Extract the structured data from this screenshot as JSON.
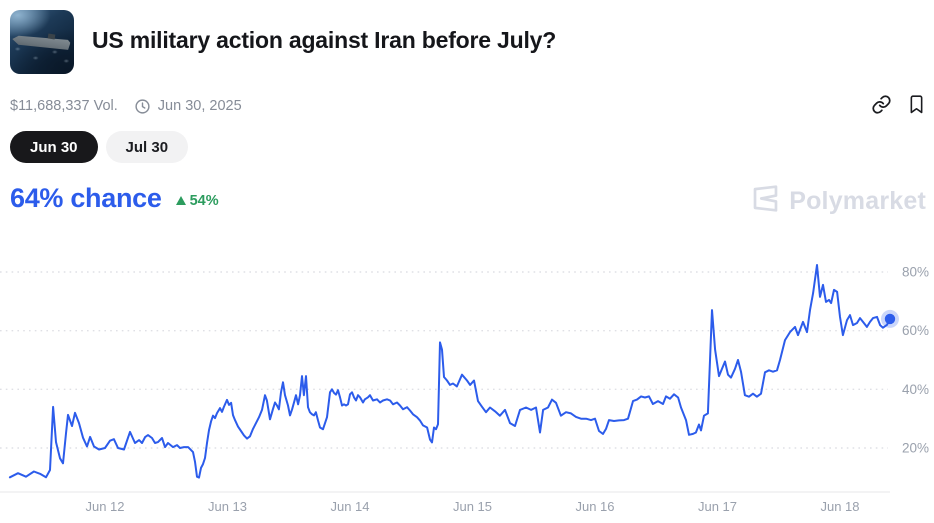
{
  "header": {
    "title": "US military action against Iran before July?",
    "volume": "$11,688,337 Vol.",
    "end_date": "Jun 30, 2025",
    "thumbnail_alt": "aircraft-carrier-photo",
    "action_icons": [
      "link-icon",
      "bookmark-icon"
    ]
  },
  "tabs": [
    {
      "label": "Jun 30",
      "active": true
    },
    {
      "label": "Jul 30",
      "active": false
    }
  ],
  "summary": {
    "chance_text": "64% chance",
    "change_direction": "up",
    "change_text": "54%"
  },
  "watermark": {
    "text": "Polymarket"
  },
  "colors": {
    "line_blue": "#2c5ceb",
    "green": "#2c9c5e",
    "grid": "#dfe0e5",
    "axis_line": "#e7e7ea",
    "axis_text": "#9aa1ad",
    "tab_active_bg": "#18181b",
    "muted_text": "#868c97",
    "title_text": "#15161a",
    "watermark_gray": "#d8dbe4"
  },
  "chart_data": {
    "type": "line",
    "title": "Probability of Yes over time",
    "legend": "none",
    "grid": "dotted-horizontal",
    "x_axis": {
      "unit": "date (June 2025, fractional days)",
      "range": [
        11.2,
        18.45
      ],
      "ticks": [
        {
          "d": 12,
          "label": "Jun 12"
        },
        {
          "d": 13,
          "label": "Jun 13"
        },
        {
          "d": 14,
          "label": "Jun 14"
        },
        {
          "d": 15,
          "label": "Jun 15"
        },
        {
          "d": 16,
          "label": "Jun 16"
        },
        {
          "d": 17,
          "label": "Jun 17"
        },
        {
          "d": 18,
          "label": "Jun 18"
        }
      ]
    },
    "y_axis": {
      "unit": "percent chance",
      "range": [
        0,
        100
      ],
      "ticks": [
        {
          "v": 20,
          "label": "20%"
        },
        {
          "v": 40,
          "label": "40%"
        },
        {
          "v": 60,
          "label": "60%"
        },
        {
          "v": 80,
          "label": "80%"
        }
      ]
    },
    "end_dot": {
      "day": 18.408,
      "value": 64
    },
    "series": [
      {
        "name": "Jun 30 — Yes",
        "color": "#2c5ceb",
        "points": [
          [
            11.224,
            10
          ],
          [
            11.29,
            11.4
          ],
          [
            11.355,
            10.2
          ],
          [
            11.42,
            12
          ],
          [
            11.469,
            11.2
          ],
          [
            11.518,
            10
          ],
          [
            11.551,
            12.5
          ],
          [
            11.576,
            34
          ],
          [
            11.6,
            22
          ],
          [
            11.633,
            16.5
          ],
          [
            11.657,
            14.8
          ],
          [
            11.682,
            25
          ],
          [
            11.698,
            31.3
          ],
          [
            11.731,
            27.5
          ],
          [
            11.755,
            32
          ],
          [
            11.788,
            28.5
          ],
          [
            11.82,
            23.5
          ],
          [
            11.853,
            20.5
          ],
          [
            11.878,
            23.8
          ],
          [
            11.91,
            20.5
          ],
          [
            11.951,
            19.5
          ],
          [
            12,
            20
          ],
          [
            12.041,
            22.5
          ],
          [
            12.073,
            23
          ],
          [
            12.106,
            20
          ],
          [
            12.155,
            19.5
          ],
          [
            12.204,
            25.5
          ],
          [
            12.245,
            21.7
          ],
          [
            12.278,
            22.7
          ],
          [
            12.302,
            21.7
          ],
          [
            12.327,
            23.7
          ],
          [
            12.351,
            24.4
          ],
          [
            12.384,
            23.4
          ],
          [
            12.408,
            21.7
          ],
          [
            12.433,
            22
          ],
          [
            12.465,
            23.4
          ],
          [
            12.49,
            20.3
          ],
          [
            12.514,
            21.7
          ],
          [
            12.555,
            20.3
          ],
          [
            12.588,
            21
          ],
          [
            12.612,
            20
          ],
          [
            12.645,
            20.3
          ],
          [
            12.678,
            20.3
          ],
          [
            12.718,
            18.6
          ],
          [
            12.735,
            15.3
          ],
          [
            12.751,
            10.2
          ],
          [
            12.767,
            9.9
          ],
          [
            12.784,
            13.2
          ],
          [
            12.8,
            14.5
          ],
          [
            12.816,
            16.6
          ],
          [
            12.833,
            21.7
          ],
          [
            12.849,
            26.1
          ],
          [
            12.865,
            29
          ],
          [
            12.882,
            31
          ],
          [
            12.898,
            30.2
          ],
          [
            12.914,
            31.9
          ],
          [
            12.939,
            33.6
          ],
          [
            12.955,
            32.3
          ],
          [
            12.971,
            34
          ],
          [
            12.996,
            36.4
          ],
          [
            13.012,
            34.7
          ],
          [
            13.029,
            35.4
          ],
          [
            13.045,
            31.2
          ],
          [
            13.061,
            29.5
          ],
          [
            13.086,
            27.3
          ],
          [
            13.11,
            25.8
          ],
          [
            13.135,
            24.3
          ],
          [
            13.159,
            23.2
          ],
          [
            13.184,
            24
          ],
          [
            13.208,
            26.5
          ],
          [
            13.233,
            28.5
          ],
          [
            13.257,
            30.5
          ],
          [
            13.282,
            33
          ],
          [
            13.306,
            38
          ],
          [
            13.322,
            36.2
          ],
          [
            13.347,
            29.8
          ],
          [
            13.371,
            33.2
          ],
          [
            13.388,
            35.5
          ],
          [
            13.404,
            34.5
          ],
          [
            13.42,
            33.2
          ],
          [
            13.437,
            39
          ],
          [
            13.453,
            42.4
          ],
          [
            13.469,
            38
          ],
          [
            13.494,
            34.5
          ],
          [
            13.51,
            31.1
          ],
          [
            13.527,
            33.2
          ],
          [
            13.543,
            35.5
          ],
          [
            13.559,
            38
          ],
          [
            13.576,
            34.9
          ],
          [
            13.592,
            38
          ],
          [
            13.608,
            44.5
          ],
          [
            13.624,
            38
          ],
          [
            13.641,
            44.5
          ],
          [
            13.657,
            33.9
          ],
          [
            13.673,
            32.2
          ],
          [
            13.69,
            31.5
          ],
          [
            13.706,
            31.1
          ],
          [
            13.722,
            32.2
          ],
          [
            13.739,
            29.4
          ],
          [
            13.755,
            27
          ],
          [
            13.78,
            26.4
          ],
          [
            13.812,
            30.5
          ],
          [
            13.837,
            39
          ],
          [
            13.853,
            40
          ],
          [
            13.869,
            38.8
          ],
          [
            13.886,
            38.2
          ],
          [
            13.902,
            39.7
          ],
          [
            13.918,
            37.3
          ],
          [
            13.935,
            34.5
          ],
          [
            13.951,
            34.9
          ],
          [
            13.967,
            34.5
          ],
          [
            13.984,
            34.9
          ],
          [
            14,
            38.3
          ],
          [
            14.016,
            39
          ],
          [
            14.033,
            37.3
          ],
          [
            14.049,
            36.2
          ],
          [
            14.065,
            38
          ],
          [
            14.082,
            37.3
          ],
          [
            14.106,
            35.5
          ],
          [
            14.122,
            36.6
          ],
          [
            14.147,
            37.3
          ],
          [
            14.163,
            38
          ],
          [
            14.188,
            36.2
          ],
          [
            14.22,
            36.6
          ],
          [
            14.245,
            35.5
          ],
          [
            14.269,
            36.2
          ],
          [
            14.302,
            36.6
          ],
          [
            14.327,
            36.2
          ],
          [
            14.351,
            34.9
          ],
          [
            14.384,
            35.5
          ],
          [
            14.408,
            34.5
          ],
          [
            14.433,
            33.2
          ],
          [
            14.465,
            33.9
          ],
          [
            14.49,
            32.8
          ],
          [
            14.514,
            31.5
          ],
          [
            14.547,
            30.5
          ],
          [
            14.571,
            29.4
          ],
          [
            14.596,
            27.7
          ],
          [
            14.629,
            27
          ],
          [
            14.653,
            22.9
          ],
          [
            14.669,
            21.9
          ],
          [
            14.686,
            27
          ],
          [
            14.702,
            26.4
          ],
          [
            14.718,
            28.1
          ],
          [
            14.735,
            56
          ],
          [
            14.751,
            53.5
          ],
          [
            14.767,
            44.2
          ],
          [
            14.792,
            43
          ],
          [
            14.816,
            41.5
          ],
          [
            14.841,
            42
          ],
          [
            14.873,
            41
          ],
          [
            14.914,
            45
          ],
          [
            14.955,
            43
          ],
          [
            14.98,
            41.5
          ],
          [
            15.012,
            43
          ],
          [
            15.045,
            36
          ],
          [
            15.078,
            34
          ],
          [
            15.11,
            32.2
          ],
          [
            15.143,
            33.8
          ],
          [
            15.184,
            32.5
          ],
          [
            15.224,
            31
          ],
          [
            15.265,
            33
          ],
          [
            15.306,
            28.5
          ],
          [
            15.347,
            27.5
          ],
          [
            15.388,
            33
          ],
          [
            15.437,
            33.8
          ],
          [
            15.478,
            33
          ],
          [
            15.518,
            33.8
          ],
          [
            15.551,
            25.3
          ],
          [
            15.576,
            33
          ],
          [
            15.616,
            33.8
          ],
          [
            15.649,
            36.5
          ],
          [
            15.682,
            35.4
          ],
          [
            15.722,
            31
          ],
          [
            15.763,
            32.2
          ],
          [
            15.804,
            31.8
          ],
          [
            15.845,
            30.6
          ],
          [
            15.886,
            30
          ],
          [
            15.927,
            30
          ],
          [
            15.967,
            29.5
          ],
          [
            16,
            30
          ],
          [
            16.033,
            25.8
          ],
          [
            16.065,
            24.8
          ],
          [
            16.09,
            26.5
          ],
          [
            16.114,
            29.5
          ],
          [
            16.155,
            29.2
          ],
          [
            16.196,
            29.4
          ],
          [
            16.237,
            29.5
          ],
          [
            16.269,
            30
          ],
          [
            16.31,
            36
          ],
          [
            16.343,
            36.5
          ],
          [
            16.376,
            37.6
          ],
          [
            16.408,
            37.2
          ],
          [
            16.441,
            37.6
          ],
          [
            16.473,
            35
          ],
          [
            16.514,
            36
          ],
          [
            16.555,
            35
          ],
          [
            16.58,
            37.6
          ],
          [
            16.612,
            36.8
          ],
          [
            16.645,
            38.3
          ],
          [
            16.678,
            37.2
          ],
          [
            16.702,
            33.8
          ],
          [
            16.743,
            29.5
          ],
          [
            16.767,
            24.5
          ],
          [
            16.8,
            24.8
          ],
          [
            16.824,
            25.3
          ],
          [
            16.849,
            28
          ],
          [
            16.865,
            26
          ],
          [
            16.89,
            31
          ],
          [
            16.922,
            31.8
          ],
          [
            16.955,
            67
          ],
          [
            16.98,
            53.5
          ],
          [
            17.012,
            44.5
          ],
          [
            17.037,
            47
          ],
          [
            17.061,
            49.5
          ],
          [
            17.086,
            45
          ],
          [
            17.11,
            44
          ],
          [
            17.143,
            47
          ],
          [
            17.167,
            50
          ],
          [
            17.192,
            46
          ],
          [
            17.224,
            38
          ],
          [
            17.257,
            37.5
          ],
          [
            17.29,
            38.5
          ],
          [
            17.322,
            37.5
          ],
          [
            17.355,
            38.5
          ],
          [
            17.388,
            45.8
          ],
          [
            17.42,
            46.5
          ],
          [
            17.453,
            46
          ],
          [
            17.486,
            46.5
          ],
          [
            17.51,
            50
          ],
          [
            17.551,
            56.8
          ],
          [
            17.592,
            59.5
          ],
          [
            17.633,
            61.3
          ],
          [
            17.657,
            58.5
          ],
          [
            17.698,
            63
          ],
          [
            17.731,
            59.5
          ],
          [
            17.755,
            67
          ],
          [
            17.78,
            72.8
          ],
          [
            17.812,
            82.4
          ],
          [
            17.837,
            71.5
          ],
          [
            17.861,
            75.6
          ],
          [
            17.886,
            69.8
          ],
          [
            17.91,
            70.5
          ],
          [
            17.927,
            69.4
          ],
          [
            17.951,
            73.9
          ],
          [
            17.976,
            73.2
          ],
          [
            18,
            64.7
          ],
          [
            18.024,
            58.5
          ],
          [
            18.057,
            63.6
          ],
          [
            18.082,
            65.3
          ],
          [
            18.106,
            61.9
          ],
          [
            18.139,
            62.6
          ],
          [
            18.163,
            64.3
          ],
          [
            18.188,
            63
          ],
          [
            18.22,
            61.3
          ],
          [
            18.245,
            63
          ],
          [
            18.269,
            64.3
          ],
          [
            18.302,
            64.7
          ],
          [
            18.327,
            61.9
          ],
          [
            18.351,
            61
          ],
          [
            18.384,
            62
          ],
          [
            18.408,
            64
          ]
        ]
      }
    ]
  }
}
